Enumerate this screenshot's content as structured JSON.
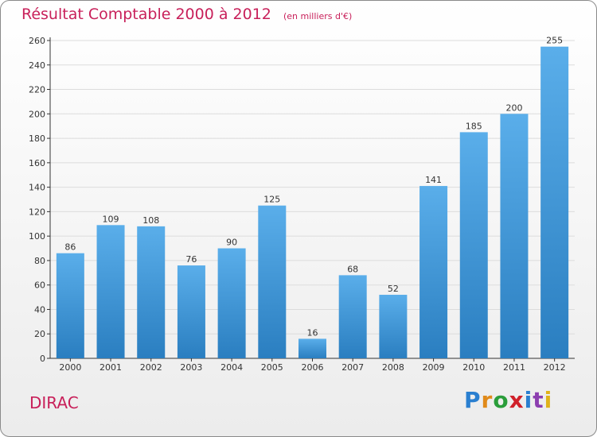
{
  "title": "Résultat Comptable 2000 à 2012",
  "unit": "(en milliers d'€)",
  "commune": "DIRAC",
  "brand": {
    "name": "Proxiti",
    "letters": [
      {
        "ch": "P",
        "color": "#2a7fd0"
      },
      {
        "ch": "r",
        "color": "#e08a1a"
      },
      {
        "ch": "o",
        "color": "#2a9d3a"
      },
      {
        "ch": "x",
        "color": "#d0202a"
      },
      {
        "ch": "i",
        "color": "#2a7fd0"
      },
      {
        "ch": "t",
        "color": "#8c3fb0"
      },
      {
        "ch": "i",
        "color": "#e0b21a"
      }
    ]
  },
  "colors": {
    "bar_top": "#5aaeea",
    "bar_bottom": "#2a7ec0",
    "grid": "#dcdcdc",
    "axis": "#333333",
    "title": "#c8205a"
  },
  "chart_data": {
    "type": "bar",
    "categories": [
      "2000",
      "2001",
      "2002",
      "2003",
      "2004",
      "2005",
      "2006",
      "2007",
      "2008",
      "2009",
      "2010",
      "2011",
      "2012"
    ],
    "values": [
      86,
      109,
      108,
      76,
      90,
      125,
      16,
      68,
      52,
      141,
      185,
      200,
      255
    ],
    "title": "Résultat Comptable 2000 à 2012",
    "subtitle": "(en milliers d'€)",
    "xlabel": "",
    "ylabel": "",
    "ylim": [
      0,
      260
    ],
    "yticks": [
      0,
      20,
      40,
      60,
      80,
      100,
      120,
      140,
      160,
      180,
      200,
      220,
      240,
      260
    ],
    "grid": true,
    "data_labels": true
  }
}
